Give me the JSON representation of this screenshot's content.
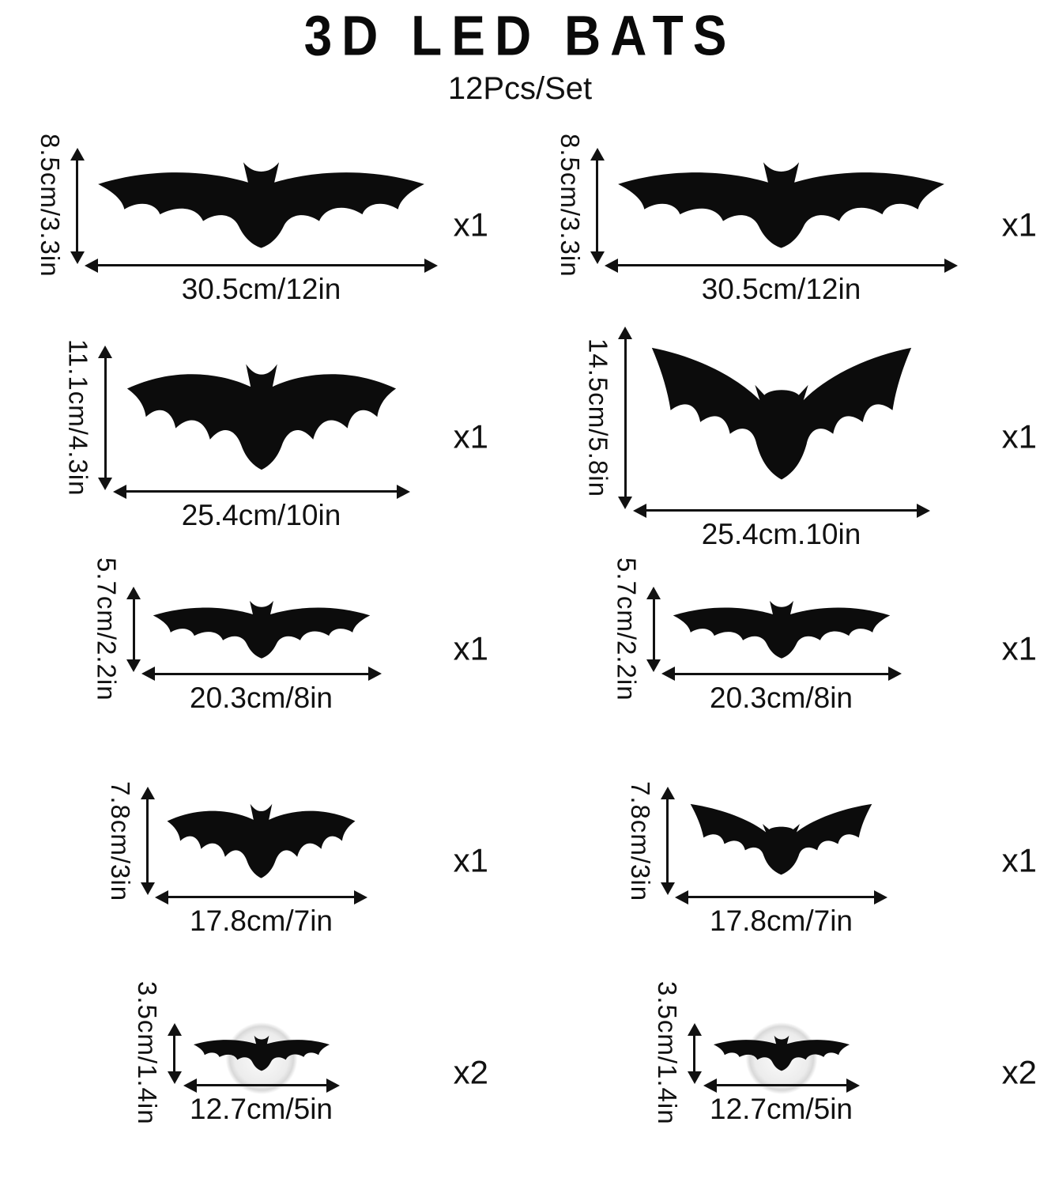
{
  "title": "3D LED BATS",
  "subtitle": "12Pcs/Set",
  "colors": {
    "ink": "#111111",
    "bat": "#0c0c0c",
    "background": "#ffffff"
  },
  "columns": [
    {
      "name": "left",
      "items": [
        {
          "height_label": "8.5cm/3.3in",
          "width_label": "30.5cm/12in",
          "qty": "x1",
          "height_cm": 8.5,
          "width_cm": 30.5,
          "variant": "classic",
          "suction": false
        },
        {
          "height_label": "11.1cm/4.3in",
          "width_label": "25.4cm/10in",
          "qty": "x1",
          "height_cm": 11.1,
          "width_cm": 25.4,
          "variant": "scallop",
          "suction": false
        },
        {
          "height_label": "5.7cm/2.2in",
          "width_label": "20.3cm/8in",
          "qty": "x1",
          "height_cm": 5.7,
          "width_cm": 20.3,
          "variant": "classic",
          "suction": false
        },
        {
          "height_label": "7.8cm/3in",
          "width_label": "17.8cm/7in",
          "qty": "x1",
          "height_cm": 7.8,
          "width_cm": 17.8,
          "variant": "scallop",
          "suction": false
        },
        {
          "height_label": "3.5cm/1.4in",
          "width_label": "12.7cm/5in",
          "qty": "x2",
          "height_cm": 3.5,
          "width_cm": 12.7,
          "variant": "classic",
          "suction": true
        }
      ]
    },
    {
      "name": "right",
      "items": [
        {
          "height_label": "8.5cm/3.3in",
          "width_label": "30.5cm/12in",
          "qty": "x1",
          "height_cm": 8.5,
          "width_cm": 30.5,
          "variant": "classic",
          "suction": false
        },
        {
          "height_label": "14.5cm/5.8in",
          "width_label": "25.4cm.10in",
          "qty": "x1",
          "height_cm": 14.5,
          "width_cm": 25.4,
          "variant": "upswept",
          "suction": false
        },
        {
          "height_label": "5.7cm/2.2in",
          "width_label": "20.3cm/8in",
          "qty": "x1",
          "height_cm": 5.7,
          "width_cm": 20.3,
          "variant": "classic",
          "suction": false
        },
        {
          "height_label": "7.8cm/3in",
          "width_label": "17.8cm/7in",
          "qty": "x1",
          "height_cm": 7.8,
          "width_cm": 17.8,
          "variant": "upswept",
          "suction": false
        },
        {
          "height_label": "3.5cm/1.4in",
          "width_label": "12.7cm/5in",
          "qty": "x2",
          "height_cm": 3.5,
          "width_cm": 12.7,
          "variant": "classic",
          "suction": true
        }
      ]
    }
  ]
}
